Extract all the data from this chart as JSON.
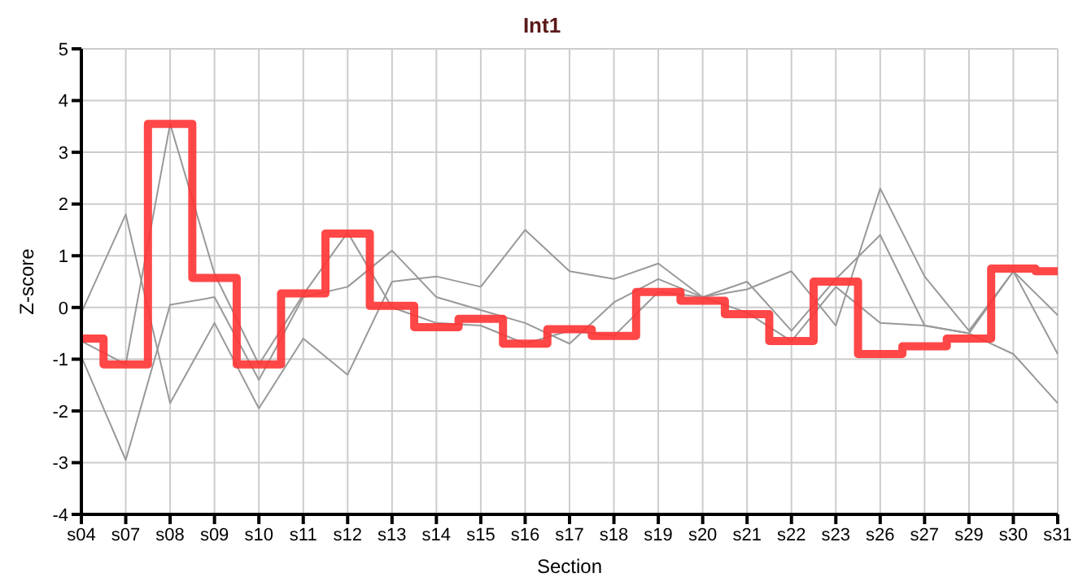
{
  "chart_data": {
    "type": "line",
    "title": "Int1",
    "xlabel": "Section",
    "ylabel": "Z-score",
    "categories": [
      "s04",
      "s07",
      "s08",
      "s09",
      "s10",
      "s11",
      "s12",
      "s13",
      "s14",
      "s15",
      "s16",
      "s17",
      "s18",
      "s19",
      "s20",
      "s21",
      "s22",
      "s23",
      "s26",
      "s27",
      "s29",
      "s30",
      "s31"
    ],
    "series": [
      {
        "color": "#999999",
        "values": [
          -0.1,
          1.8,
          -1.85,
          -0.3,
          -1.95,
          -0.6,
          -1.3,
          0.5,
          0.6,
          0.4,
          1.5,
          0.7,
          0.55,
          0.85,
          0.2,
          0.35,
          0.7,
          -0.35,
          2.3,
          0.6,
          -0.45,
          0.7,
          -0.15
        ]
      },
      {
        "color": "#999999",
        "values": [
          -0.95,
          -2.95,
          0.05,
          0.2,
          -1.4,
          0.2,
          0.4,
          1.1,
          0.2,
          -0.05,
          -0.3,
          -0.7,
          0.1,
          0.55,
          0.2,
          0.5,
          -0.45,
          0.55,
          1.4,
          -0.35,
          -0.5,
          0.7,
          -0.9
        ]
      },
      {
        "color": "#999999",
        "values": [
          -0.65,
          -1.1,
          3.55,
          0.65,
          -1.1,
          0.25,
          1.45,
          0,
          -0.3,
          -0.35,
          -0.7,
          -0.45,
          -0.55,
          0.3,
          0.2,
          -0.1,
          -0.65,
          0.4,
          -0.3,
          -0.35,
          -0.5,
          -0.9,
          -1.85
        ]
      },
      {
        "type": "step",
        "color": "#ff3333",
        "values": [
          -0.6,
          -1.1,
          3.55,
          0.57,
          -1.1,
          0.27,
          1.43,
          0.03,
          -0.38,
          -0.22,
          -0.7,
          -0.42,
          -0.55,
          0.3,
          0.13,
          -0.13,
          -0.65,
          0.5,
          -0.9,
          -0.75,
          -0.6,
          0.75,
          0.7
        ]
      }
    ],
    "ylim": [
      -4,
      5
    ],
    "yticks": [
      -4,
      -3,
      -2,
      -1,
      0,
      1,
      2,
      3,
      4,
      5
    ],
    "grid": true,
    "marker": "none",
    "line_style": "solid"
  }
}
